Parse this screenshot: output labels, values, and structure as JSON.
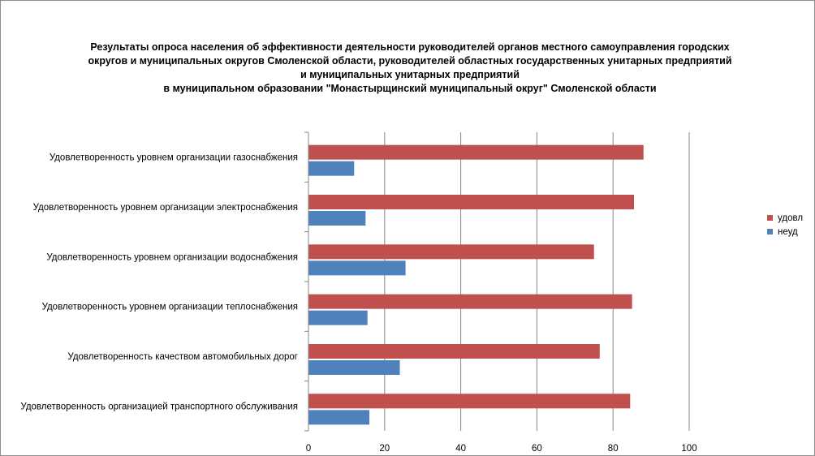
{
  "chart_data": {
    "type": "bar",
    "orientation": "horizontal",
    "title_lines": [
      "Результаты опроса населения об эффективности деятельности руководителей органов местного самоуправления городских",
      "округов и муниципальных округов Смоленской области, руководителей областных государственных унитарных предприятий",
      "и муниципальных унитарных предприятий",
      "в муниципальном образовании \"Монастырщинский муниципальный округ\" Смоленской области"
    ],
    "categories": [
      "Удовлетворенность уровнем организации газоснабжения",
      "Удовлетворенность уровнем организации электроснабжения",
      "Удовлетворенность уровнем организации водоснабжения",
      "Удовлетворенность уровнем организации теплоснабжения",
      "Удовлетворенность качеством автомобильных дорог",
      "Удовлетворенность организацией транспортного обслуживания"
    ],
    "series": [
      {
        "name": "удовл",
        "color": "#c0504d",
        "values": [
          88,
          85.5,
          75,
          85,
          76.5,
          84.5
        ]
      },
      {
        "name": "неуд",
        "color": "#4f81bd",
        "values": [
          12,
          15,
          25.5,
          15.5,
          24,
          16
        ]
      }
    ],
    "xlim": [
      0,
      100
    ],
    "xticks": [
      "0",
      "20",
      "40",
      "60",
      "80",
      "100"
    ],
    "grid": true,
    "legend_position": "right"
  }
}
